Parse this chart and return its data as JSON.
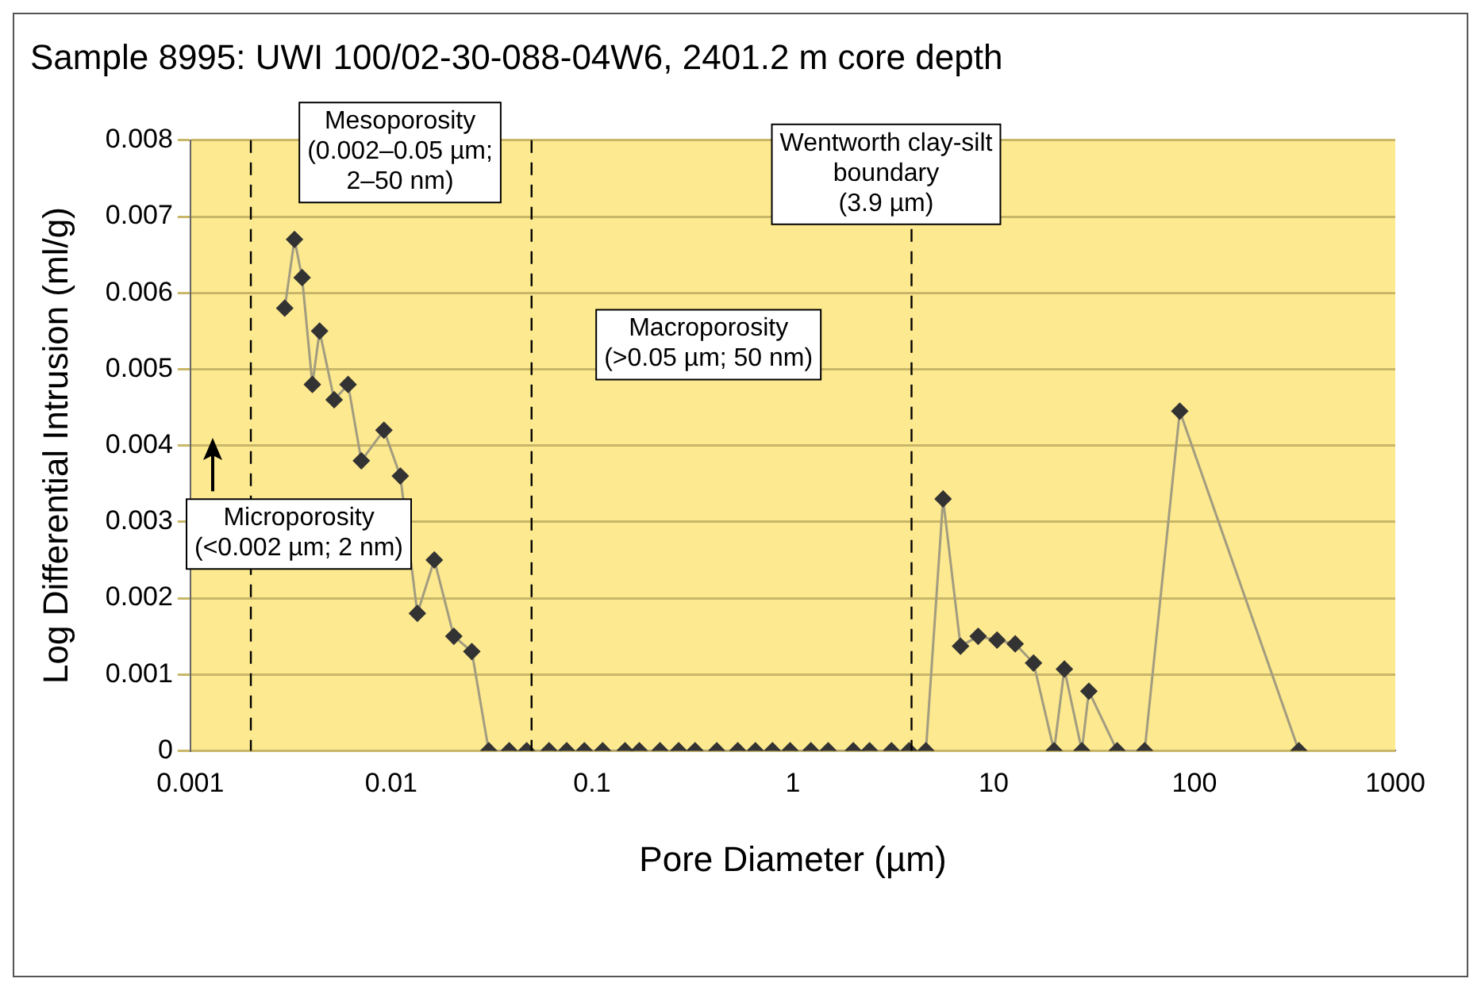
{
  "chart_data": {
    "type": "line",
    "title": "Sample 8995: UWI 100/02-30-088-04W6, 2401.2 m core depth",
    "xlabel": "Pore Diameter (µm)",
    "ylabel": "Log Differential Intrusion (ml/g)",
    "log": "x",
    "xlim": [
      0.001,
      1000
    ],
    "xticks": [
      0.001,
      0.01,
      0.1,
      1,
      10,
      100,
      1000
    ],
    "ylim": [
      0,
      0.008
    ],
    "yticks": [
      0,
      0.001,
      0.002,
      0.003,
      0.004,
      0.005,
      0.006,
      0.007,
      0.008
    ],
    "grid": "y",
    "legend": false,
    "marker": "diamond",
    "line_style": "solid",
    "series": [
      {
        "color": "#333333",
        "x": [
          0.00295,
          0.0033,
          0.0036,
          0.00405,
          0.0044,
          0.0052,
          0.0061,
          0.0071,
          0.0092,
          0.0111,
          0.0135,
          0.0164,
          0.0205,
          0.0252,
          0.0306,
          0.0387,
          0.0473,
          0.0611,
          0.0748,
          0.0916,
          0.113,
          0.146,
          0.172,
          0.218,
          0.27,
          0.326,
          0.418,
          0.532,
          0.651,
          0.792,
          0.969,
          1.23,
          1.5,
          2,
          2.41,
          3.1,
          3.79,
          4.6,
          5.6,
          6.84,
          8.37,
          10.4,
          12.8,
          15.8,
          20,
          22.5,
          27.5,
          29.8,
          41.2,
          56.5,
          84.5,
          331
        ],
        "values": [
          0.0058,
          0.0067,
          0.0062,
          0.0048,
          0.0055,
          0.0046,
          0.0048,
          0.0038,
          0.0042,
          0.0036,
          0.0018,
          0.0025,
          0.0015,
          0.0013,
          0,
          0,
          0,
          0,
          0,
          0,
          0,
          0,
          0,
          0,
          0,
          0,
          0,
          0,
          0,
          0,
          0,
          0,
          0,
          0,
          0,
          0,
          0,
          0,
          0.0033,
          0.00137,
          0.0015,
          0.00145,
          0.0014,
          0.00115,
          0,
          0.00107,
          0,
          0.00078,
          0,
          0,
          0.00445,
          0
        ]
      }
    ],
    "ref_lines": [
      {
        "axis": "x",
        "value": 0.002,
        "label": null,
        "color": "#000000",
        "line_style": "dashed"
      },
      {
        "axis": "x",
        "value": 0.05,
        "label": null,
        "color": "#000000",
        "line_style": "dashed"
      },
      {
        "axis": "x",
        "value": 3.9,
        "label": "Wentworth clay-silt\nboundary\n(3.9 µm)",
        "color": "#000000",
        "line_style": "dashed"
      }
    ],
    "annotations": [
      "Mesoporosity\n(0.002–0.05 µm;\n2–50 nm)",
      "Macroporosity\n(>0.05 µm; 50 nm)",
      "Microporosity\n(<0.002 µm; 2 nm)"
    ]
  }
}
